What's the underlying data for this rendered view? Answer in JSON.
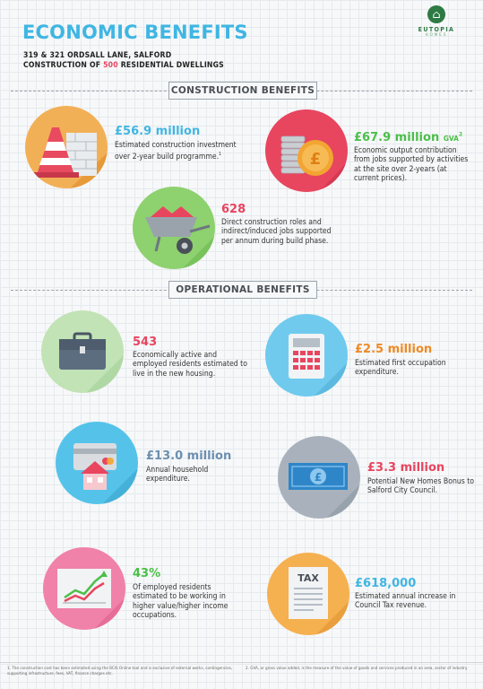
{
  "header": {
    "title": "ECONOMIC BENEFITS",
    "subtitle_line1": "319 & 321 ORDSALL LANE, SALFORD",
    "subtitle_line2_pre": "CONSTRUCTION OF ",
    "subtitle_line2_num": "500",
    "subtitle_line2_post": " RESIDENTIAL DWELLINGS"
  },
  "logo": {
    "name": "EUTOPIA",
    "tagline": "HOMES"
  },
  "sections": {
    "construction": "CONSTRUCTION BENEFITS",
    "operational": "OPERATIONAL BENEFITS"
  },
  "construction": {
    "investment": {
      "value": "£56.9 million",
      "text": "Estimated construction investment over 2-year build programme.",
      "note": "1"
    },
    "output": {
      "value": "£67.9 million",
      "suffix": "GVA",
      "note": "2",
      "text": "Economic output contribution from jobs supported by activities at the site over 2-years (at current prices)."
    },
    "jobs": {
      "value": "628",
      "text": "Direct construction roles and indirect/induced jobs supported per annum during build phase."
    }
  },
  "operational": {
    "residents": {
      "value": "543",
      "text": "Economically active and employed residents estimated to live in the new housing."
    },
    "first_occupation": {
      "value": "£2.5 million",
      "text": "Estimated first occupation expenditure."
    },
    "household": {
      "value": "£13.0 million",
      "text": "Annual household expenditure."
    },
    "new_homes_bonus": {
      "value": "£3.3 million",
      "text": "Potential New Homes Bonus to Salford City Council."
    },
    "higher_income": {
      "value": "43%",
      "text": "Of employed residents estimated to be working in higher value/higher income occupations."
    },
    "council_tax": {
      "value": "£618,000",
      "text": "Estimated annual increase in Council Tax revenue.",
      "icon_label": "TAX"
    }
  },
  "footnotes": {
    "left": "1. The construction cost has been estimated using the BCIS Online tool and is exclusive of external works, contingencies, supporting infrastructure, fees, VAT, finance charges etc.",
    "right": "2. GVA, or gross value added, is the measure of the value of goods and services produced in an area, sector of industry"
  },
  "colors": {
    "title_blue": "#3fb6e3",
    "accent_pink": "#e8455f",
    "accent_green": "#4bbf49",
    "accent_orange": "#f08a24",
    "accent_slate": "#6b8fb0"
  }
}
